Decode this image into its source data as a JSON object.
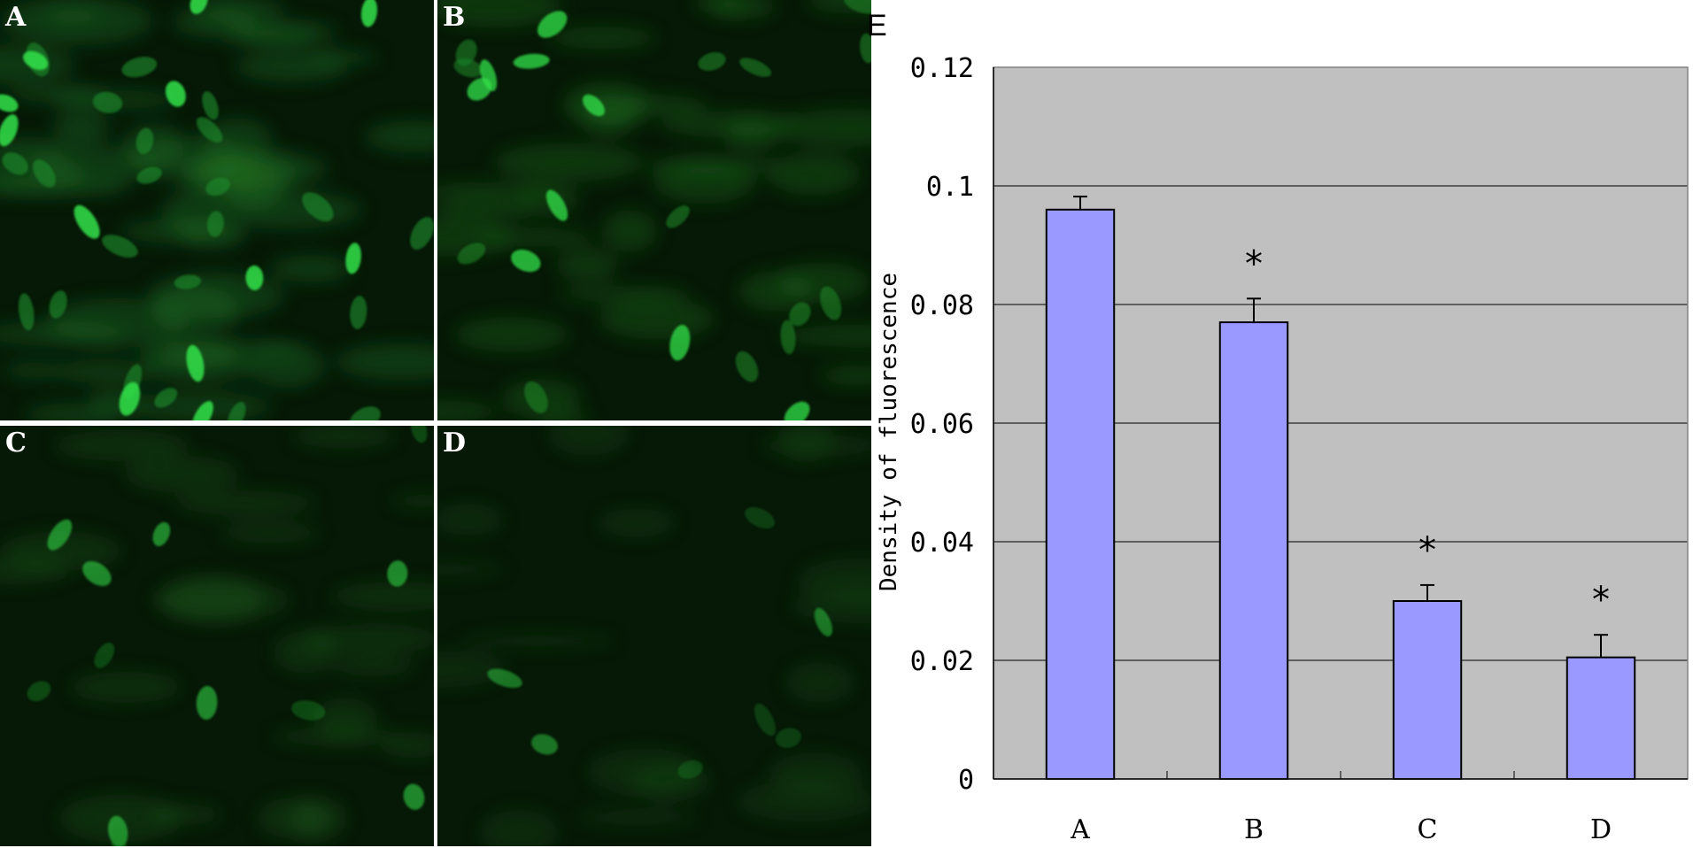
{
  "panels": [
    {
      "label": "A",
      "brightness": "high"
    },
    {
      "label": "B",
      "brightness": "medium"
    },
    {
      "label": "C",
      "brightness": "low"
    },
    {
      "label": "D",
      "brightness": "very-low"
    }
  ],
  "colors": {
    "panel_background": "#061806",
    "nucleus_bright": "#33e24a",
    "nucleus_dim": "#1d8a2a",
    "bar_fill": "#9999ff",
    "plot_background": "#c0c0c0",
    "grid_line": "#000000"
  },
  "chart_data": {
    "type": "bar",
    "panel_label": "E",
    "title": "",
    "xlabel": "",
    "ylabel": "Density of fluorescence",
    "categories": [
      "A",
      "B",
      "C",
      "D"
    ],
    "values": [
      0.096,
      0.077,
      0.03,
      0.0205
    ],
    "errors": [
      0.0022,
      0.004,
      0.0027,
      0.0038
    ],
    "significance": [
      "",
      "*",
      "*",
      "*"
    ],
    "ylim": [
      0,
      0.12
    ],
    "yticks": [
      "0",
      "0.02",
      "0.04",
      "0.06",
      "0.08",
      "0.1",
      "0.12"
    ],
    "grid": true,
    "legend": "none"
  }
}
